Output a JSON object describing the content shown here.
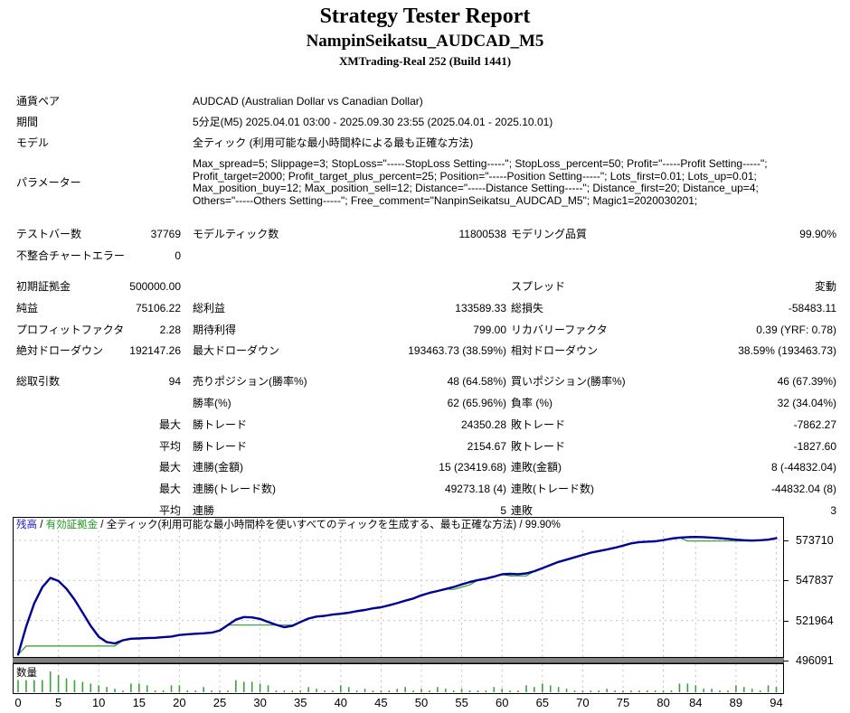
{
  "header": {
    "title": "Strategy Tester Report",
    "subtitle": "NampinSeikatsu_AUDCAD_M5",
    "server": "XMTrading-Real 252 (Build 1441)"
  },
  "info_rows": [
    {
      "label": "通貨ペア",
      "value": "AUDCAD (Australian Dollar vs Canadian Dollar)"
    },
    {
      "label": "期間",
      "value": "5分足(M5) 2025.04.01 03:00 - 2025.09.30 23:55 (2025.04.01 - 2025.10.01)"
    },
    {
      "label": "モデル",
      "value": "全ティック (利用可能な最小時間枠による最も正確な方法)"
    },
    {
      "label": "パラメーター",
      "value": "Max_spread=5; Slippage=3; StopLoss=\"-----StopLoss Setting-----\"; StopLoss_percent=50; Profit=\"-----Profit Setting-----\"; Profit_target=2000; Profit_target_plus_percent=25; Position=\"-----Position Setting-----\"; Lots_first=0.01; Lots_up=0.01; Max_position_buy=12; Max_position_sell=12; Distance=\"-----Distance Setting-----\"; Distance_first=20; Distance_up=4; Others=\"-----Others Setting-----\"; Free_comment=\"NanpinSeikatsu_AUDCAD_M5\"; Magic1=2020030201;"
    }
  ],
  "stats": {
    "gaps_before": [
      2,
      6
    ],
    "rows": [
      [
        "テストバー数",
        "37769",
        "モデルティック数",
        "11800538",
        "モデリング品質",
        "99.90%"
      ],
      [
        "不整合チャートエラー",
        "0",
        "",
        "",
        "",
        ""
      ],
      [
        "初期証拠金",
        "500000.00",
        "",
        "",
        "スプレッド",
        "変動"
      ],
      [
        "純益",
        "75106.22",
        "総利益",
        "133589.33",
        "総損失",
        "-58483.11"
      ],
      [
        "プロフィットファクタ",
        "2.28",
        "期待利得",
        "799.00",
        "リカバリーファクタ",
        "0.39 (YRF: 0.78)"
      ],
      [
        "絶対ドローダウン",
        "192147.26",
        "最大ドローダウン",
        "193463.73 (38.59%)",
        "相対ドローダウン",
        "38.59% (193463.73)"
      ],
      [
        "総取引数",
        "94",
        "売りポジション(勝率%)",
        "48 (64.58%)",
        "買いポジション(勝率%)",
        "46 (67.39%)"
      ],
      [
        "",
        "",
        "勝率(%)",
        "62 (65.96%)",
        "負率 (%)",
        "32 (34.04%)"
      ],
      [
        "",
        "最大",
        "勝トレード",
        "24350.28",
        "敗トレード",
        "-7862.27"
      ],
      [
        "",
        "平均",
        "勝トレード",
        "2154.67",
        "敗トレード",
        "-1827.60"
      ],
      [
        "",
        "最大",
        "連勝(金額)",
        "15 (23419.68)",
        "連敗(金額)",
        "8 (-44832.04)"
      ],
      [
        "",
        "最大",
        "連勝(トレード数)",
        "49273.18 (4)",
        "連敗(トレード数)",
        "-44832.04 (8)"
      ],
      [
        "",
        "平均",
        "連勝",
        "5",
        "連敗",
        "3"
      ]
    ]
  },
  "graph": {
    "legend": {
      "balance": "残高",
      "equity": "有効証拠金",
      "model": "全ティック(利用可能な最小時間枠を使いすべてのティックを生成する、最も正確な方法)",
      "quality": "99.90%",
      "sep": " / "
    },
    "volume_label": "数量",
    "colors": {
      "balance_line": "#000096",
      "equity_line": "#2E9B2E",
      "balance_legend": "#2020C8",
      "equity_legend": "#1E9A1E",
      "volume_bar": "#3CA03C",
      "grid": "#C4C4C4",
      "separator_band": "#808080"
    }
  },
  "chart_data": {
    "type": "line",
    "title": "残高 / 有効証拠金 / 全ティック(利用可能な最小時間枠を使いすべてのティックを生成する、最も正確な方法) / 99.90%",
    "xlabel": "",
    "ylabel": "",
    "x_range": [
      0,
      94
    ],
    "y_ticks": [
      573710,
      547837,
      521964,
      496091
    ],
    "x_ticks": [
      0,
      5,
      10,
      15,
      20,
      25,
      30,
      35,
      40,
      45,
      50,
      55,
      60,
      65,
      70,
      75,
      80,
      84,
      89,
      94
    ],
    "grid": true,
    "legend_position": "top-left",
    "series": [
      {
        "name": "残高",
        "type": "line",
        "color": "#000096",
        "values": [
          500000,
          518000,
          533000,
          543500,
          549500,
          547500,
          542500,
          535500,
          527000,
          518500,
          511500,
          508000,
          507200,
          509200,
          510200,
          510400,
          510600,
          510800,
          511200,
          511600,
          512600,
          513100,
          513400,
          513700,
          514100,
          515500,
          519000,
          522500,
          524200,
          524000,
          523000,
          521000,
          519200,
          517600,
          518500,
          521000,
          523200,
          524500,
          525000,
          525800,
          526300,
          527000,
          528000,
          528800,
          529800,
          530500,
          531800,
          533200,
          534800,
          536200,
          538200,
          539800,
          541000,
          542300,
          543600,
          545300,
          546800,
          548100,
          549000,
          550300,
          551800,
          552100,
          551900,
          552400,
          553800,
          555800,
          557800,
          559800,
          561300,
          562800,
          564300,
          565800,
          566800,
          567800,
          569000,
          570300,
          571800,
          572600,
          572900,
          573100,
          573900,
          574900,
          575500,
          575800,
          575900,
          575800,
          575500,
          575100,
          574700,
          574200,
          573800,
          573600,
          573800,
          574200,
          575106
        ]
      },
      {
        "name": "有効証拠金",
        "type": "line",
        "color": "#2E9B2E",
        "values": [
          500000,
          505500,
          505500,
          505500,
          505500,
          505500,
          505500,
          505500,
          505500,
          505500,
          505500,
          505500,
          505500,
          509200,
          510200,
          510400,
          510600,
          510800,
          511200,
          511600,
          512600,
          513100,
          513400,
          513700,
          514100,
          515500,
          519000,
          519000,
          519000,
          519000,
          519000,
          519000,
          519000,
          519000,
          519000,
          521000,
          523200,
          524500,
          525000,
          525800,
          526300,
          527000,
          528000,
          528800,
          529800,
          530500,
          531800,
          533200,
          534800,
          536200,
          538200,
          539800,
          541000,
          542300,
          542000,
          543500,
          545000,
          548100,
          549000,
          550300,
          551800,
          550800,
          550800,
          550800,
          553800,
          555800,
          557800,
          559800,
          561300,
          562800,
          564300,
          565800,
          566800,
          567800,
          569000,
          570300,
          571800,
          572600,
          572900,
          573100,
          573900,
          574900,
          575500,
          573300,
          573300,
          573300,
          573300,
          573300,
          573300,
          573300,
          573300,
          573300,
          573800,
          574200,
          575106
        ]
      },
      {
        "name": "数量",
        "type": "bar",
        "color": "#3CA03C",
        "values": [
          7,
          7,
          7,
          7,
          12,
          10,
          8,
          7,
          6,
          5,
          4,
          3,
          2,
          1,
          5,
          5,
          4,
          1,
          1,
          4,
          4,
          1,
          1,
          3,
          1,
          1,
          1,
          7,
          6,
          6,
          5,
          4,
          1,
          1,
          1,
          1,
          3,
          2,
          1,
          1,
          4,
          3,
          1,
          2,
          1,
          1,
          1,
          2,
          3,
          1,
          2,
          1,
          3,
          2,
          1,
          2,
          1,
          1,
          1,
          3,
          2,
          1,
          1,
          4,
          3,
          5,
          4,
          3,
          2,
          1,
          1,
          1,
          1,
          2,
          1,
          1,
          1,
          1,
          1,
          1,
          1,
          1,
          5,
          5,
          4,
          2,
          2,
          1,
          1,
          4,
          3,
          2,
          1,
          4,
          3
        ]
      }
    ]
  }
}
